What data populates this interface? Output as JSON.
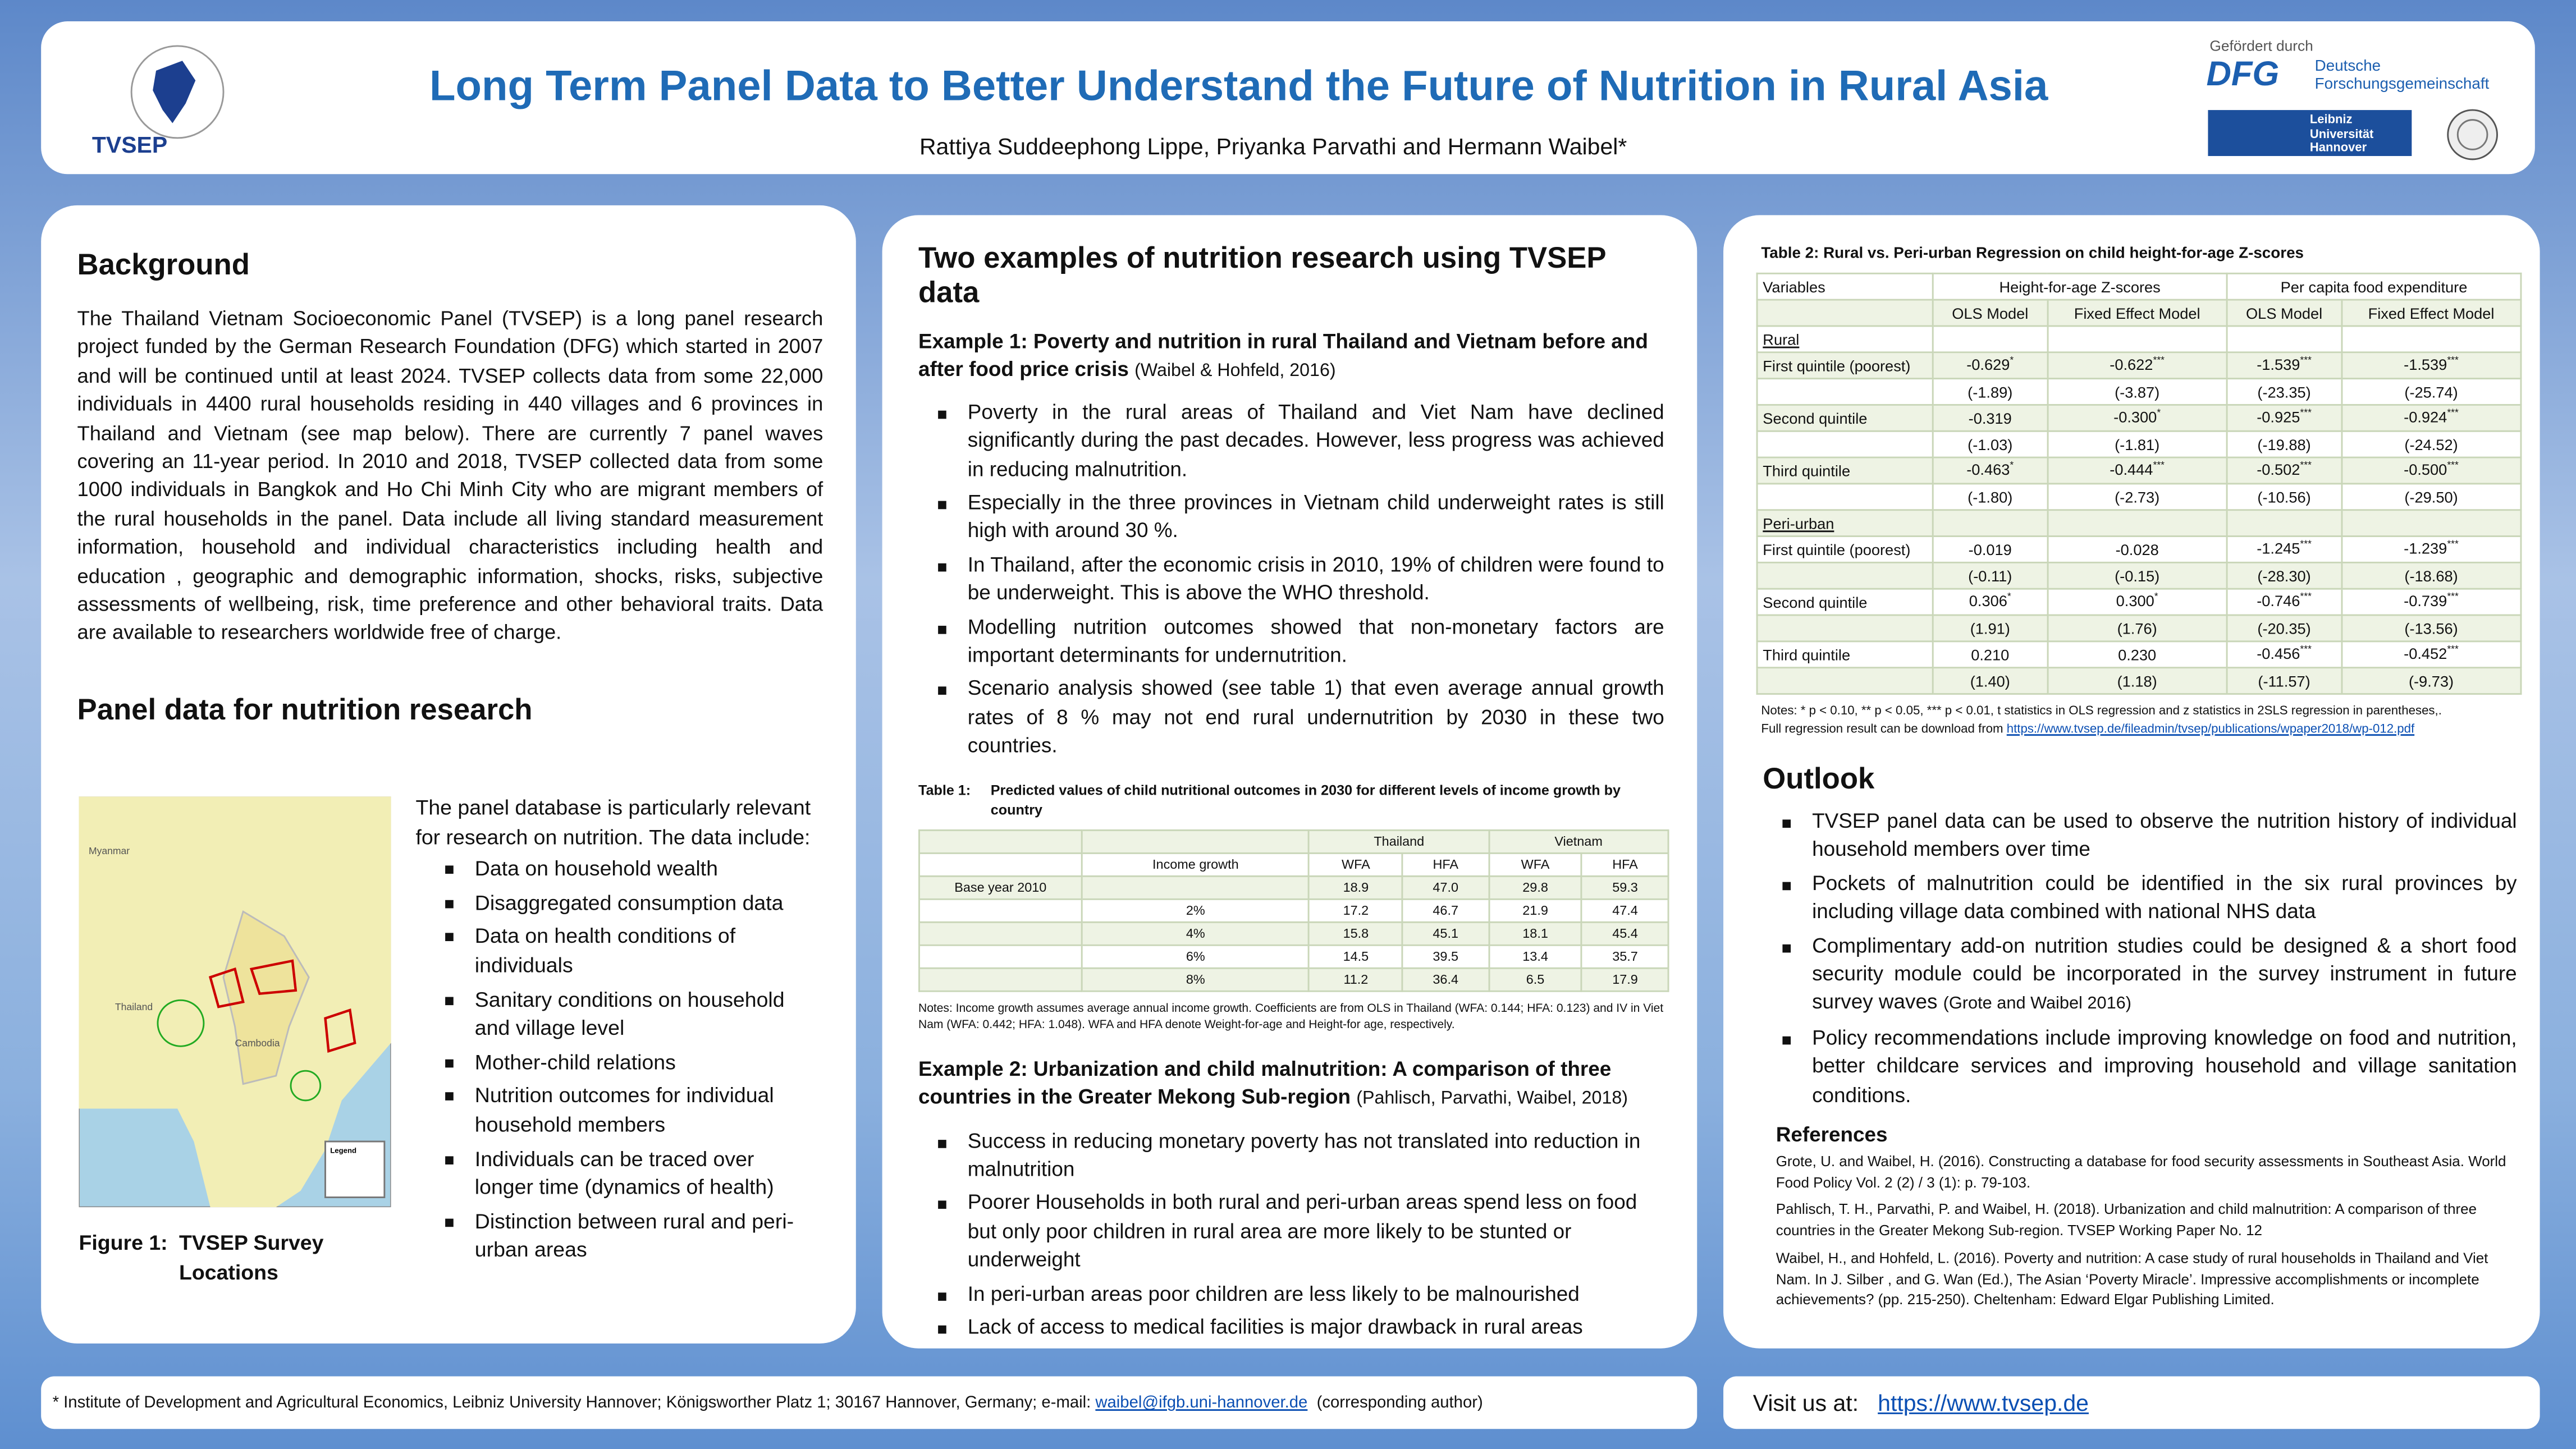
{
  "header": {
    "logo_text": "TVSEP",
    "title": "Long Term Panel Data to Better Understand  the Future of Nutrition in Rural Asia",
    "authors": "Rattiya Suddeephong Lippe,  Priyanka Parvathi  and Hermann Waibel*",
    "funder": "Gefördert durch",
    "dfg": "DFG",
    "dfg_name": [
      "Deutsche",
      "Forschungsgemeinschaft"
    ],
    "luh": [
      "Leibniz",
      "Universität",
      "Hannover"
    ]
  },
  "background": {
    "heading": "Background",
    "text": "The Thailand Vietnam Socioeconomic Panel (TVSEP) is a long panel research project funded by the German Research Foundation (DFG) which started in 2007 and will be continued until at least 2024.  TVSEP collects data from some 22,000 individuals in 4400 rural households residing in 440 villages and 6 provinces in Thailand and Vietnam (see map below). There are currently 7 panel waves covering an 11-year period. In 2010 and 2018, TVSEP collected data from some 1000 individuals in Bangkok and Ho Chi Minh City who are migrant members of the rural households in the panel. Data include all living standard measurement information, household and individual characteristics including health and education , geographic and demographic information, shocks, risks, subjective assessments of wellbeing, risk, time preference  and other behavioral traits. Data are available to researchers worldwide free of charge."
  },
  "panel": {
    "heading": "Panel data for nutrition research",
    "intro": "The panel database is particularly relevant for research on nutrition. The data include:",
    "items": [
      "Data on household wealth",
      "Disaggregated consumption data",
      "Data on health conditions of individuals",
      "Sanitary conditions on household and village level",
      "Mother-child relations",
      "Nutrition outcomes for individual household members",
      "Individuals can be traced over longer time (dynamics of health)",
      "Distinction between rural and peri-urban areas"
    ],
    "figure_label": "Figure 1:",
    "figure_caption": "TVSEP Survey Locations",
    "map_labels": [
      "Myanmar",
      "Thailand",
      "Cambodia",
      "Legend"
    ]
  },
  "examples": {
    "heading": "Two examples of nutrition research using TVSEP data",
    "ex1": {
      "title": "Example 1: Poverty and nutrition in rural Thailand and Vietnam before and after food price crisis",
      "cite": "(Waibel & Hohfeld, 2016)",
      "bullets": [
        "Poverty in the rural areas of Thailand and Viet Nam have declined significantly during the past decades. However, less progress was achieved in reducing malnutrition.",
        "Especially in the three provinces in Vietnam child underweight rates is still high with around 30 %.",
        "In Thailand, after the economic crisis in 2010, 19% of children were found to be underweight. This is above the WHO threshold.",
        "Modelling nutrition outcomes showed that non-monetary factors are important determinants for undernutrition.",
        "Scenario analysis showed (see table 1) that  even average annual growth rates of 8 %  may not end  rural undernutrition by  2030 in these two countries."
      ]
    },
    "table1": {
      "label": "Table 1:",
      "caption": "Predicted values of child nutritional outcomes in 2030 for different levels of income growth by country",
      "groups": [
        "Thailand",
        "Vietnam"
      ],
      "columns": [
        "Income growth",
        "WFA",
        "HFA",
        "WFA",
        "HFA"
      ],
      "rows": [
        {
          "label": "Base year 2010",
          "growth": null,
          "values": [
            "18.9",
            "47.0",
            "29.8",
            "59.3"
          ]
        },
        {
          "label": null,
          "growth": "2%",
          "values": [
            "17.2",
            "46.7",
            "21.9",
            "47.4"
          ]
        },
        {
          "label": null,
          "growth": "4%",
          "values": [
            "15.8",
            "45.1",
            "18.1",
            "45.4"
          ]
        },
        {
          "label": null,
          "growth": "6%",
          "values": [
            "14.5",
            "39.5",
            "13.4",
            "35.7"
          ]
        },
        {
          "label": null,
          "growth": "8%",
          "values": [
            "11.2",
            "36.4",
            "6.5",
            "17.9"
          ]
        }
      ],
      "notes": "Notes: Income growth assumes average annual income growth. Coefficients are from OLS in Thailand (WFA: 0.144; HFA: 0.123) and IV in Viet Nam (WFA: 0.442; HFA: 1.048). WFA and HFA denote Weight-for-age and Height-for age, respectively."
    },
    "ex2": {
      "title": "Example 2: Urbanization and child malnutrition: A comparison of three countries in the Greater Mekong Sub-region",
      "cite": "(Pahlisch, Parvathi, Waibel, 2018)",
      "bullets": [
        "Success in reducing monetary poverty has not translated into reduction in malnutrition",
        "Poorer Households in both rural and peri-urban areas spend less on food but only  poor children  in rural area are more likely to be stunted or underweight",
        "In peri-urban areas poor children are less likely to be  malnourished",
        "Lack of access to medical facilities is major drawback in  rural areas"
      ]
    }
  },
  "table2": {
    "title": "Table 2: Rural vs. Peri-urban Regression on child height-for-age Z-scores",
    "variables": "Variables",
    "groups": [
      "Height-for-age Z-scores",
      "Per capita food expenditure"
    ],
    "models": [
      "OLS Model",
      "Fixed Effect Model",
      "OLS Model",
      "Fixed Effect Model"
    ],
    "sections": [
      {
        "name": "Rural",
        "rows": [
          {
            "label": "First quintile (poorest)",
            "coef": [
              {
                "value": "-0.629",
                "sig": "*"
              },
              {
                "value": "-0.622",
                "sig": "***"
              },
              {
                "value": "-1.539",
                "sig": "***"
              },
              {
                "value": "-1.539",
                "sig": "***"
              }
            ],
            "t": [
              "(-1.89)",
              "(-3.87)",
              "(-23.35)",
              "(-25.74)"
            ]
          },
          {
            "label": "Second quintile",
            "coef": [
              {
                "value": "-0.319"
              },
              {
                "value": "-0.300",
                "sig": "*"
              },
              {
                "value": "-0.925",
                "sig": "***"
              },
              {
                "value": "-0.924",
                "sig": "***"
              }
            ],
            "t": [
              "(-1.03)",
              "(-1.81)",
              "(-19.88)",
              "(-24.52)"
            ]
          },
          {
            "label": "Third quintile",
            "coef": [
              {
                "value": "-0.463",
                "sig": "*"
              },
              {
                "value": "-0.444",
                "sig": "***"
              },
              {
                "value": "-0.502",
                "sig": "***"
              },
              {
                "value": "-0.500",
                "sig": "***"
              }
            ],
            "t": [
              "(-1.80)",
              "(-2.73)",
              "(-10.56)",
              "(-29.50)"
            ]
          }
        ]
      },
      {
        "name": "Peri-urban",
        "rows": [
          {
            "label": "First quintile (poorest)",
            "coef": [
              {
                "value": "-0.019"
              },
              {
                "value": "-0.028"
              },
              {
                "value": "-1.245",
                "sig": "***"
              },
              {
                "value": "-1.239",
                "sig": "***"
              }
            ],
            "t": [
              "(-0.11)",
              "(-0.15)",
              "(-28.30)",
              "(-18.68)"
            ]
          },
          {
            "label": "Second quintile",
            "coef": [
              {
                "value": "0.306",
                "sig": "*"
              },
              {
                "value": "0.300",
                "sig": "*"
              },
              {
                "value": "-0.746",
                "sig": "***"
              },
              {
                "value": "-0.739",
                "sig": "***"
              }
            ],
            "t": [
              "(1.91)",
              "(1.76)",
              "(-20.35)",
              "(-13.56)"
            ]
          },
          {
            "label": "Third quintile",
            "coef": [
              {
                "value": "0.210"
              },
              {
                "value": "0.230"
              },
              {
                "value": "-0.456",
                "sig": "***"
              },
              {
                "value": "-0.452",
                "sig": "***"
              }
            ],
            "t": [
              "(1.40)",
              "(1.18)",
              "(-11.57)",
              "(-9.73)"
            ]
          }
        ]
      }
    ],
    "notes": "Notes: * p < 0.10, ** p < 0.05, *** p < 0.01, t statistics in OLS regression and z statistics in 2SLS regression in parentheses,.",
    "link_intro": "Full regression result can be download from",
    "link": "https://www.tvsep.de/fileadmin/tvsep/publications/wpaper2018/wp-012.pdf"
  },
  "outlook": {
    "heading": "Outlook",
    "bullets": [
      {
        "text": "TVSEP panel data can be used to observe the nutrition history of individual household members over time"
      },
      {
        "text": "Pockets of malnutrition could be identified in the six rural provinces by including village data combined with national NHS data"
      },
      {
        "text": "Complimentary add-on nutrition studies could be designed  & a short food security module could be incorporated in the survey instrument in future survey waves",
        "cite": "(Grote and Waibel 2016)"
      },
      {
        "text": "Policy recommendations include improving knowledge on food and nutrition, better  childcare services and  improving household and village sanitation conditions."
      }
    ]
  },
  "references": {
    "heading": "References",
    "items": [
      "Grote, U. and Waibel, H. (2016). Constructing a database for food security assessments in Southeast Asia. World Food Policy Vol. 2 (2) / 3 (1): p. 79-103.",
      "Pahlisch, T. H., Parvathi, P. and Waibel, H. (2018). Urbanization and child malnutrition: A comparison of three countries in the Greater Mekong Sub-region. TVSEP Working Paper No. 12",
      "Waibel, H., and Hohfeld, L. (2016). Poverty and nutrition: A case study of rural households in Thailand and Viet Nam. In J. Silber , and G. Wan (Ed.), The Asian ‘Poverty Miracle’. Impressive accomplishments or incomplete achievements? (pp. 215-250). Cheltenham: Edward Elgar Publishing Limited."
    ]
  },
  "footer": {
    "affiliation": "* Institute of Development and Agricultural Economics, Leibniz University Hannover; Königsworther Platz 1; 30167 Hannover, Germany; e-mail:",
    "email": "waibel@ifgb.uni-hannover.de",
    "role": "(corresponding author)",
    "visit": "Visit us at:",
    "url": "https://www.tvsep.de"
  }
}
